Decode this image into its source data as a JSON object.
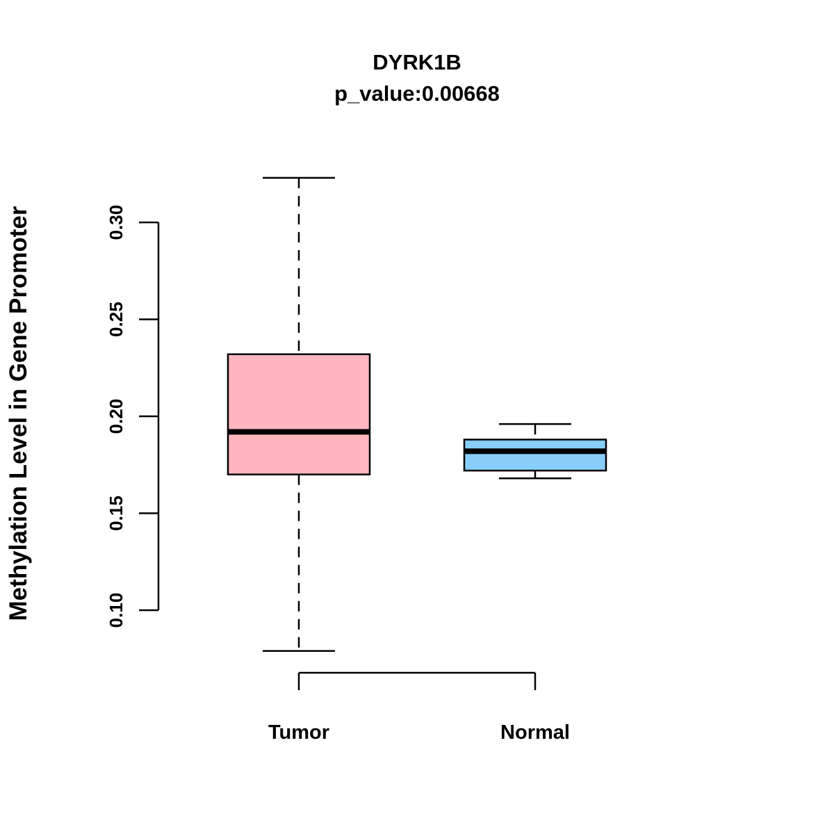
{
  "chart_data": {
    "type": "boxplot",
    "title": "DYRK1B",
    "subtitle": "p_value:0.00668",
    "ylabel": "Methylation Level in Gene Promoter",
    "xlabel": "",
    "categories": [
      "Tumor",
      "Normal"
    ],
    "yaxis": {
      "ticks": [
        0.1,
        0.15,
        0.2,
        0.25,
        0.3
      ],
      "tick_labels": [
        "0.10",
        "0.15",
        "0.20",
        "0.25",
        "0.30"
      ],
      "ylim": [
        0.079,
        0.323
      ],
      "grid": false
    },
    "series": [
      {
        "name": "Tumor",
        "fill_color": "#FFB6C1",
        "whisker_low": 0.079,
        "q1": 0.17,
        "median": 0.192,
        "q3": 0.232,
        "whisker_high": 0.323
      },
      {
        "name": "Normal",
        "fill_color": "#87CEFA",
        "whisker_low": 0.168,
        "q1": 0.172,
        "median": 0.182,
        "q3": 0.188,
        "whisker_high": 0.196
      }
    ],
    "stroke_color": "#000000",
    "legend": "none"
  }
}
